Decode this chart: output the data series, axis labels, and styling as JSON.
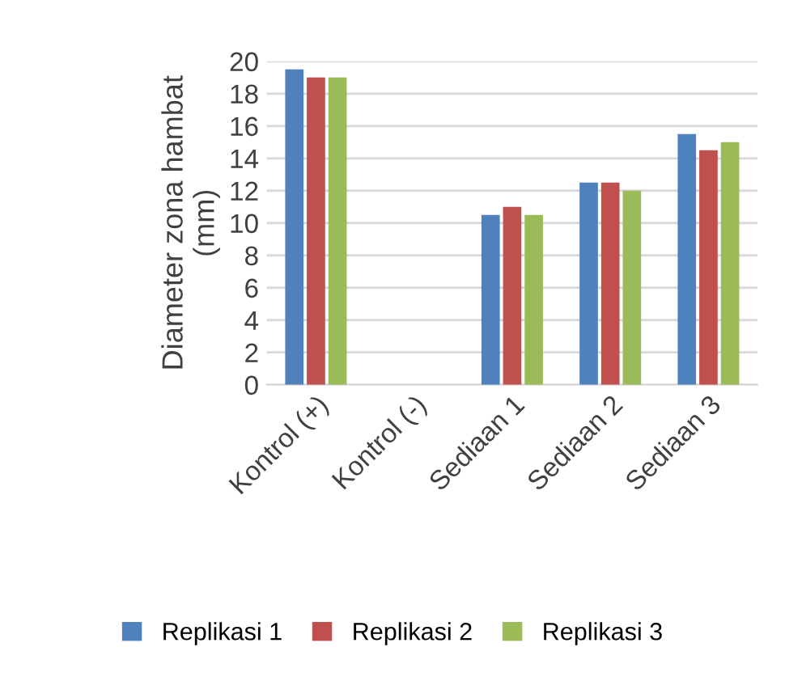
{
  "chart_data": {
    "type": "bar",
    "ylabel": "Diameter zona hambat\n(mm)",
    "categories": [
      "Kontrol (+)",
      "Kontrol (-)",
      "Sediaan 1",
      "Sediaan 2",
      "Sediaan 3"
    ],
    "series": [
      {
        "name": "Replikasi 1",
        "color": "#4f81bd",
        "values": [
          19.5,
          0,
          10.5,
          12.5,
          15.5
        ]
      },
      {
        "name": "Replikasi 2",
        "color": "#c0504d",
        "values": [
          19,
          0,
          11,
          12.5,
          14.5
        ]
      },
      {
        "name": "Replikasi 3",
        "color": "#9bbb59",
        "values": [
          19,
          0,
          10.5,
          12,
          15
        ]
      }
    ],
    "ylim": [
      0,
      20
    ],
    "yticks": [
      0,
      2,
      4,
      6,
      8,
      10,
      12,
      14,
      16,
      18,
      20
    ],
    "grid": "y",
    "legend": "bottom"
  }
}
